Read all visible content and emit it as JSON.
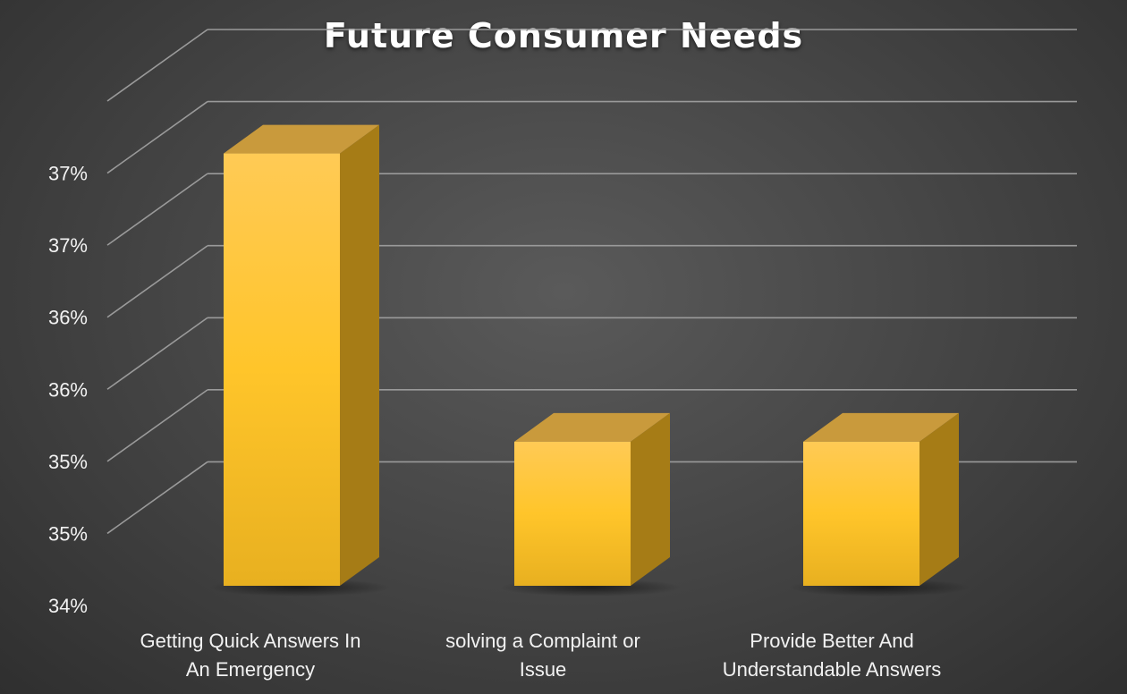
{
  "chart_data": {
    "type": "bar",
    "title": "Future Consumer Needs",
    "categories": [
      [
        "Getting Quick Answers In",
        "An Emergency"
      ],
      [
        "solving a Complaint or",
        "Issue"
      ],
      [
        "Provide Better And",
        "Understandable Answers"
      ]
    ],
    "values": [
      37.2,
      35.2,
      35.2
    ],
    "ylim": [
      34.2,
      37.7
    ],
    "ytick_values": [
      34.2,
      34.7,
      35.2,
      35.7,
      36.2,
      36.7,
      37.2,
      37.7
    ],
    "ytick_labels": [
      "34%",
      "35%",
      "35%",
      "36%",
      "36%",
      "37%",
      "37%",
      ""
    ],
    "grid": true,
    "colors": {
      "bar_front": "#ffc72a",
      "bar_top": "#c99a3c",
      "bar_side": "#a67c16",
      "grid": "#9a9a9a",
      "text": "#f2f2f2"
    }
  }
}
